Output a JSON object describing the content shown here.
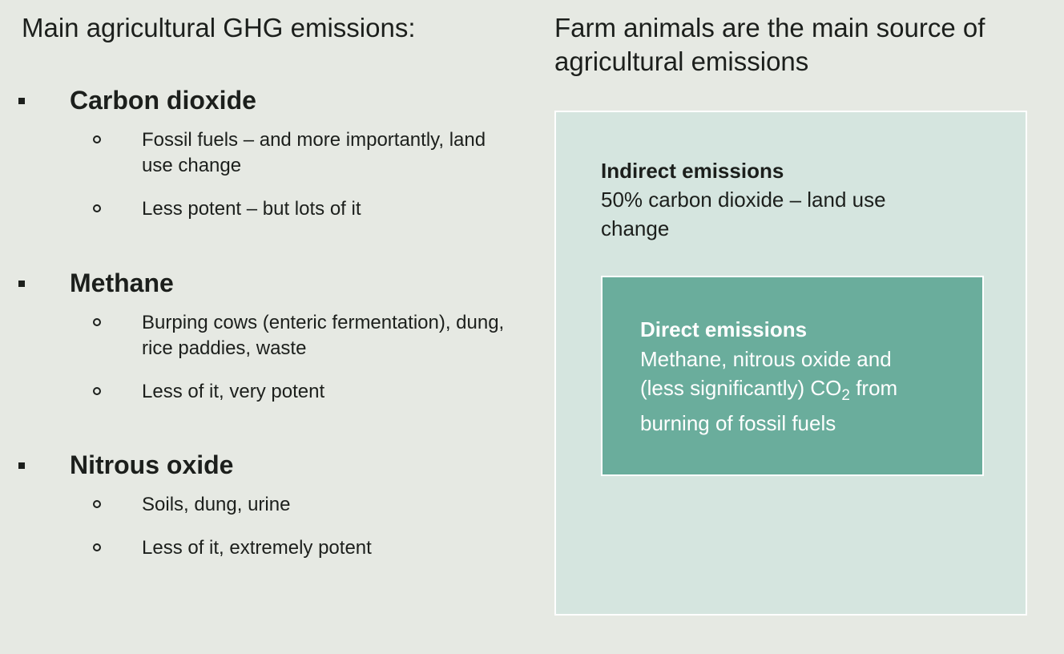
{
  "left": {
    "title": "Main agricultural GHG emissions:",
    "gases": [
      {
        "name": "Carbon dioxide",
        "points": [
          "Fossil fuels – and more importantly, land use change",
          "Less potent – but lots of it"
        ]
      },
      {
        "name": "Methane",
        "points": [
          "Burping cows (enteric fermentation), dung, rice paddies, waste",
          "Less of it, very potent"
        ]
      },
      {
        "name": "Nitrous oxide",
        "points": [
          "Soils, dung, urine",
          "Less of it, extremely potent"
        ]
      }
    ]
  },
  "right": {
    "title": "Farm animals are the main source of agricultural emissions",
    "indirect": {
      "heading": "Indirect emissions",
      "text": "50% carbon dioxide – land use change"
    },
    "direct": {
      "heading": "Direct emissions",
      "line1": "Methane, nitrous oxide and",
      "line2_pre": "(less significantly) CO",
      "line2_sub": "2",
      "line2_post": " from",
      "line3": "burning of fossil fuels"
    }
  },
  "colors": {
    "background": "#e6e9e3",
    "outer_box": "#d5e5df",
    "inner_box": "#6aad9c",
    "text": "#1c1f1c"
  }
}
